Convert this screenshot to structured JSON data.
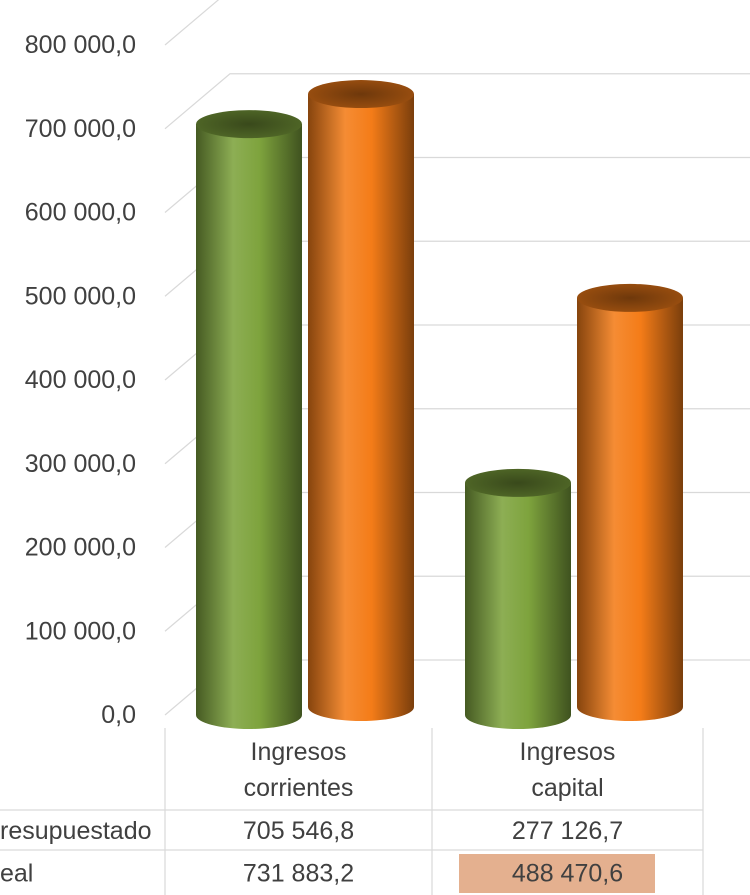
{
  "chart_data": {
    "type": "bar",
    "categories": [
      "Ingresos corrientes",
      "Ingresos capital"
    ],
    "category_lines": [
      [
        "Ingresos",
        "corrientes"
      ],
      [
        "Ingresos",
        "capital"
      ]
    ],
    "series": [
      {
        "name": "resupuestado",
        "values": [
          705546.8,
          277126.7
        ],
        "labels": [
          "705 546,8",
          "277 126,7"
        ],
        "color": "#7ea33d"
      },
      {
        "name": "eal",
        "values": [
          731883.2,
          488470.6
        ],
        "labels": [
          "731 883,2",
          "488 470,6"
        ],
        "color": "#f47c18"
      }
    ],
    "yticks": [
      {
        "value": 0,
        "label": "0,0"
      },
      {
        "value": 100000,
        "label": "100 000,0"
      },
      {
        "value": 200000,
        "label": "200 000,0"
      },
      {
        "value": 300000,
        "label": "300 000,0"
      },
      {
        "value": 400000,
        "label": "400 000,0"
      },
      {
        "value": 500000,
        "label": "500 000,0"
      },
      {
        "value": 600000,
        "label": "600 000,0"
      },
      {
        "value": 700000,
        "label": "700 000,0"
      },
      {
        "value": 800000,
        "label": "800 000,0"
      }
    ],
    "ylim": [
      0,
      800000
    ],
    "grid": true,
    "data_table": true,
    "highlighted_cell": {
      "series": 1,
      "category": 1,
      "color": "#e4b08f"
    }
  }
}
